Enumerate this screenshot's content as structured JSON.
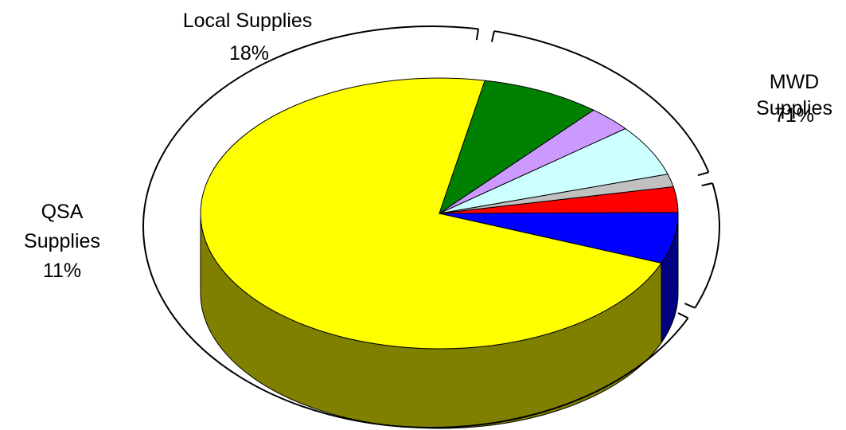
{
  "chart_data": {
    "type": "pie",
    "title": "",
    "style": "3d",
    "slices": [
      {
        "name": "",
        "value": 71,
        "color": "#ffff00",
        "side_color": "#808000"
      },
      {
        "name": "",
        "value": 6,
        "color": "#0000ff",
        "side_color": "#000080"
      },
      {
        "name": "",
        "value": 3,
        "color": "#ff0000",
        "side_color": "#800000"
      },
      {
        "name": "",
        "value": 1.5,
        "color": "#c0c0c0",
        "side_color": "#808080"
      },
      {
        "name": "",
        "value": 6,
        "color": "#ccffff",
        "side_color": "#669999"
      },
      {
        "name": "",
        "value": 3,
        "color": "#cc99ff",
        "side_color": "#664d80"
      },
      {
        "name": "",
        "value": 8,
        "color": "#008000",
        "side_color": "#004000"
      }
    ],
    "groups": [
      {
        "line1": "MWD",
        "line2": "Supplies",
        "percent": "71%",
        "value": 71
      },
      {
        "line1": "QSA",
        "line2": "Supplies",
        "percent": "11%",
        "value": 11
      },
      {
        "line1": "Local Supplies",
        "line2": "",
        "percent": "18%",
        "value": 18
      }
    ]
  }
}
